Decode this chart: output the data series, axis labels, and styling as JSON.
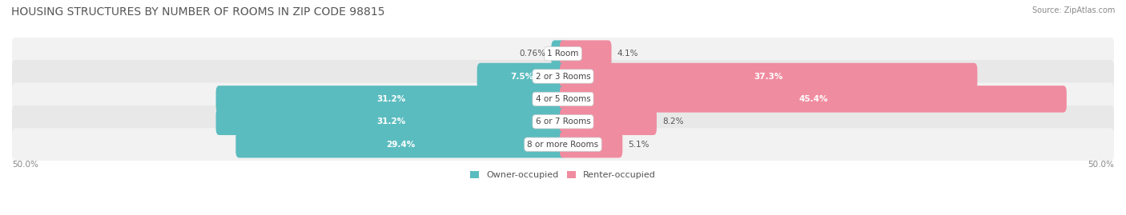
{
  "title": "HOUSING STRUCTURES BY NUMBER OF ROOMS IN ZIP CODE 98815",
  "source": "Source: ZipAtlas.com",
  "categories": [
    "1 Room",
    "2 or 3 Rooms",
    "4 or 5 Rooms",
    "6 or 7 Rooms",
    "8 or more Rooms"
  ],
  "owner_values": [
    0.76,
    7.5,
    31.2,
    31.2,
    29.4
  ],
  "renter_values": [
    4.1,
    37.3,
    45.4,
    8.2,
    5.1
  ],
  "owner_color": "#5bbcbf",
  "renter_color": "#f08ca0",
  "bar_bg_even": "#f2f2f2",
  "bar_bg_odd": "#e8e8e8",
  "axis_label_left": "50.0%",
  "axis_label_right": "50.0%",
  "max_val": 50.0,
  "title_fontsize": 10,
  "label_fontsize": 7.5,
  "category_fontsize": 7.5,
  "legend_fontsize": 8
}
